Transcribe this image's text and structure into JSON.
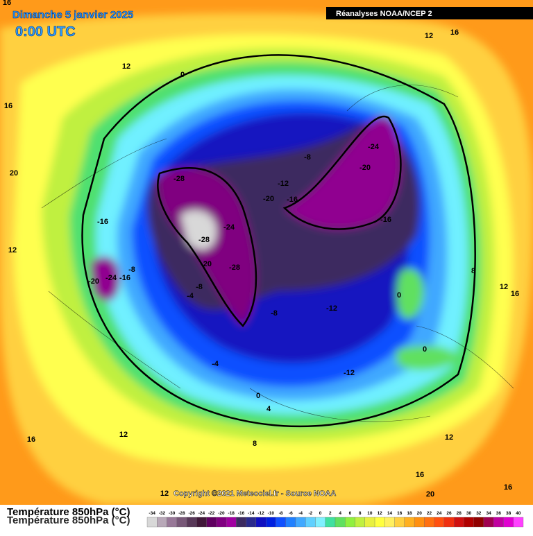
{
  "header": {
    "title": "Dimanche 5 janvier 2025",
    "time": "0:00 UTC",
    "source": "Réanalyses NOAA/NCEP 2"
  },
  "copyright": "Copyright ©2021 Meteociel.fr - Source NOAA",
  "legend": {
    "title": "Température 850hPa (°C)",
    "labels": [
      -34,
      -32,
      -30,
      -28,
      -26,
      -24,
      -22,
      -20,
      -18,
      -16,
      -14,
      -12,
      -10,
      -8,
      -6,
      -4,
      -2,
      0,
      2,
      4,
      6,
      8,
      10,
      12,
      14,
      16,
      18,
      20,
      22,
      24,
      26,
      28,
      30,
      32,
      34,
      36,
      38,
      40
    ],
    "colors": [
      "#d8d8d8",
      "#b8a8b8",
      "#987898",
      "#785878",
      "#583858",
      "#401838",
      "#600060",
      "#800080",
      "#a000a0",
      "#3c2a60",
      "#2a2a8c",
      "#1010c0",
      "#0020e0",
      "#1050ff",
      "#2080ff",
      "#40a8ff",
      "#60d0ff",
      "#80f0ff",
      "#40e0a0",
      "#60e060",
      "#90f040",
      "#c0f040",
      "#e8f040",
      "#ffff40",
      "#fff060",
      "#ffd040",
      "#ffb020",
      "#ff9010",
      "#ff7010",
      "#ff5010",
      "#f03010",
      "#d01010",
      "#b00000",
      "#900000",
      "#a00050",
      "#c000a0",
      "#e000d0",
      "#ff40ff"
    ]
  },
  "contour_labels": [
    16,
    12,
    16,
    12,
    0,
    16,
    20,
    -24,
    -8,
    -20,
    -28,
    -12,
    -20,
    -16,
    -16,
    -24,
    -16,
    12,
    -28,
    -20,
    -28,
    -8,
    8,
    -20,
    -24,
    -16,
    -8,
    12,
    16,
    -4,
    0,
    -12,
    -8,
    0,
    -4,
    -12,
    0,
    4,
    8,
    16,
    12,
    12,
    16,
    16,
    20,
    12
  ]
}
